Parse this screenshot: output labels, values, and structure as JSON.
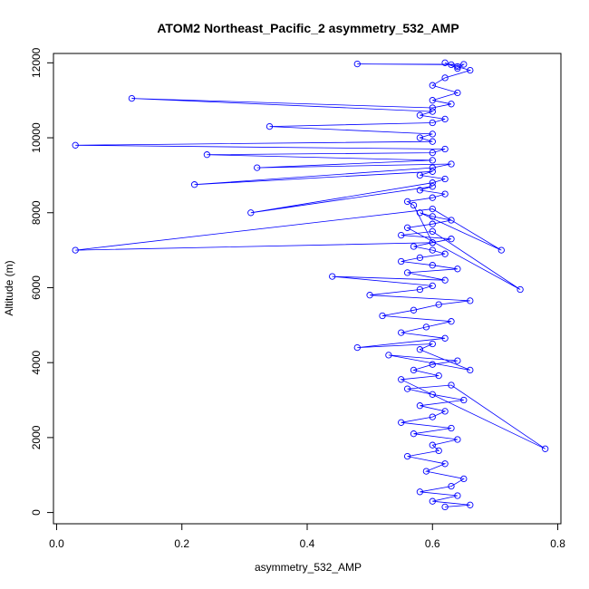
{
  "chart_data": {
    "type": "scatter",
    "title": "ATOM2 Northeast_Pacific_2 asymmetry_532_AMP",
    "xlabel": "asymmetry_532_AMP",
    "ylabel": "Altitude (m)",
    "xlim": [
      -0.005,
      0.805
    ],
    "ylim": [
      -300,
      12250
    ],
    "xticks": [
      0.0,
      0.2,
      0.4,
      0.6,
      0.8
    ],
    "xtick_labels": [
      "0.0",
      "0.2",
      "0.4",
      "0.6",
      "0.8"
    ],
    "yticks": [
      0,
      2000,
      4000,
      6000,
      8000,
      10000,
      12000
    ],
    "ytick_labels": [
      "0",
      "2000",
      "4000",
      "6000",
      "8000",
      "10000",
      "12000"
    ],
    "grid": false,
    "legend": "none",
    "series_color": "#0000ff",
    "marker": "open-circle",
    "connected": true,
    "series": [
      {
        "x": [
          0.62,
          0.66,
          0.6,
          0.64,
          0.58,
          0.63,
          0.65,
          0.59,
          0.62,
          0.56,
          0.61,
          0.6,
          0.64,
          0.57,
          0.63,
          0.55,
          0.6,
          0.62,
          0.58,
          0.65,
          0.6,
          0.56,
          0.63,
          0.78,
          0.55,
          0.61,
          0.57,
          0.6,
          0.64,
          0.53,
          0.66,
          0.58,
          0.6,
          0.48,
          0.62,
          0.55,
          0.59,
          0.63,
          0.52,
          0.57,
          0.61,
          0.66,
          0.5,
          0.58,
          0.6,
          0.44,
          0.62,
          0.56,
          0.64,
          0.6,
          0.55,
          0.58,
          0.62,
          0.6,
          0.57,
          0.6,
          0.63,
          0.55,
          0.6,
          0.74,
          0.56,
          0.6,
          0.63,
          0.6,
          0.58,
          0.71,
          0.6,
          0.03,
          0.6,
          0.57,
          0.56,
          0.6,
          0.62,
          0.58,
          0.6,
          0.31,
          0.6,
          0.62,
          0.58,
          0.6,
          0.22,
          0.6,
          0.63,
          0.32,
          0.6,
          0.24,
          0.6,
          0.62,
          0.03,
          0.6,
          0.58,
          0.6,
          0.34,
          0.6,
          0.62,
          0.58,
          0.6,
          0.12,
          0.6,
          0.63,
          0.6,
          0.64,
          0.6,
          0.62,
          0.66,
          0.64,
          0.63,
          0.48,
          0.65,
          0.64,
          0.62
        ],
        "y": [
          150,
          200,
          300,
          450,
          550,
          700,
          900,
          1100,
          1300,
          1500,
          1650,
          1800,
          1950,
          2100,
          2250,
          2400,
          2550,
          2700,
          2850,
          3000,
          3150,
          3300,
          3400,
          1700,
          3550,
          3650,
          3800,
          3950,
          4050,
          4200,
          3800,
          4350,
          4500,
          4400,
          4650,
          4800,
          4950,
          5100,
          5250,
          5400,
          5550,
          5650,
          5800,
          5950,
          6050,
          6300,
          6200,
          6400,
          6500,
          6600,
          6700,
          6800,
          6900,
          7000,
          7100,
          7200,
          7300,
          7400,
          7500,
          5950,
          7600,
          7700,
          7800,
          7900,
          8000,
          7000,
          8100,
          7000,
          7200,
          8200,
          8300,
          8400,
          8500,
          8600,
          8700,
          8000,
          8800,
          8900,
          9000,
          9100,
          8750,
          9200,
          9300,
          9200,
          9400,
          9550,
          9600,
          9700,
          9800,
          9900,
          10000,
          10100,
          10300,
          10400,
          10500,
          10600,
          10700,
          11050,
          10800,
          10900,
          11000,
          11200,
          11400,
          11600,
          11800,
          11900,
          11950,
          11970,
          11960,
          11850,
          12000
        ]
      }
    ]
  }
}
